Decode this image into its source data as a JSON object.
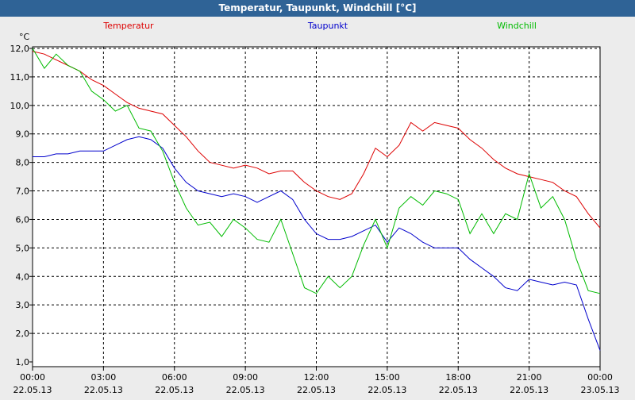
{
  "window": {
    "title": "Temperatur, Taupunkt, Windchill [°C]"
  },
  "chart_data": {
    "type": "line",
    "title": "Temperatur, Taupunkt, Windchill [°C]",
    "ylabel": "°C",
    "ylim": [
      1.0,
      12.0
    ],
    "y_ticks": [
      "12,0",
      "11,0",
      "10,0",
      "9,0",
      "8,0",
      "7,0",
      "6,0",
      "5,0",
      "4,0",
      "3,0",
      "2,0",
      "1,0"
    ],
    "x_ticks": [
      {
        "time": "00:00",
        "date": "22.05.13"
      },
      {
        "time": "03:00",
        "date": "22.05.13"
      },
      {
        "time": "06:00",
        "date": "22.05.13"
      },
      {
        "time": "09:00",
        "date": "22.05.13"
      },
      {
        "time": "12:00",
        "date": "22.05.13"
      },
      {
        "time": "15:00",
        "date": "22.05.13"
      },
      {
        "time": "18:00",
        "date": "22.05.13"
      },
      {
        "time": "21:00",
        "date": "22.05.13"
      },
      {
        "time": "00:00",
        "date": "23.05.13"
      }
    ],
    "x_unit": "hours since 22.05.13 00:00",
    "grid": true,
    "series": [
      {
        "name": "Temperatur",
        "color": "#dd0000",
        "x": [
          0,
          0.5,
          1,
          1.5,
          2,
          2.5,
          3,
          3.5,
          4,
          4.5,
          5,
          5.5,
          6,
          6.5,
          7,
          7.5,
          8,
          8.5,
          9,
          9.5,
          10,
          10.5,
          11,
          11.5,
          12,
          12.5,
          13,
          13.5,
          14,
          14.5,
          15,
          15.5,
          16,
          16.5,
          17,
          17.5,
          18,
          18.5,
          19,
          19.5,
          20,
          20.5,
          21,
          21.5,
          22,
          22.5,
          23,
          23.5,
          24
        ],
        "values": [
          11.9,
          11.8,
          11.6,
          11.4,
          11.2,
          10.9,
          10.7,
          10.4,
          10.1,
          9.9,
          9.8,
          9.7,
          9.3,
          8.9,
          8.4,
          8.0,
          7.9,
          7.8,
          7.9,
          7.8,
          7.6,
          7.7,
          7.7,
          7.3,
          7.0,
          6.8,
          6.7,
          6.9,
          7.6,
          8.5,
          8.2,
          8.6,
          9.4,
          9.1,
          9.4,
          9.3,
          9.2,
          8.8,
          8.5,
          8.1,
          7.8,
          7.6,
          7.5,
          7.4,
          7.3,
          7.0,
          6.8,
          6.2,
          5.7
        ]
      },
      {
        "name": "Taupunkt",
        "color": "#0000cc",
        "x": [
          0,
          0.5,
          1,
          1.5,
          2,
          2.5,
          3,
          3.5,
          4,
          4.5,
          5,
          5.5,
          6,
          6.5,
          7,
          7.5,
          8,
          8.5,
          9,
          9.5,
          10,
          10.5,
          11,
          11.5,
          12,
          12.5,
          13,
          13.5,
          14,
          14.5,
          15,
          15.5,
          16,
          16.5,
          17,
          17.5,
          18,
          18.5,
          19,
          19.5,
          20,
          20.5,
          21,
          21.5,
          22,
          22.5,
          23,
          23.5,
          24
        ],
        "values": [
          8.2,
          8.2,
          8.3,
          8.3,
          8.4,
          8.4,
          8.4,
          8.6,
          8.8,
          8.9,
          8.8,
          8.5,
          7.8,
          7.3,
          7.0,
          6.9,
          6.8,
          6.9,
          6.8,
          6.6,
          6.8,
          7.0,
          6.7,
          6.0,
          5.5,
          5.3,
          5.3,
          5.4,
          5.6,
          5.8,
          5.2,
          5.7,
          5.5,
          5.2,
          5.0,
          5.0,
          5.0,
          4.6,
          4.3,
          4.0,
          3.6,
          3.5,
          3.9,
          3.8,
          3.7,
          3.8,
          3.7,
          2.5,
          1.4
        ]
      },
      {
        "name": "Windchill",
        "color": "#00bb00",
        "x": [
          0,
          0.5,
          1,
          1.5,
          2,
          2.5,
          3,
          3.5,
          4,
          4.5,
          5,
          5.5,
          6,
          6.5,
          7,
          7.5,
          8,
          8.5,
          9,
          9.5,
          10,
          10.5,
          11,
          11.5,
          12,
          12.5,
          13,
          13.5,
          14,
          14.5,
          15,
          15.5,
          16,
          16.5,
          17,
          17.5,
          18,
          18.5,
          19,
          19.5,
          20,
          20.5,
          21,
          21.5,
          22,
          22.5,
          23,
          23.5,
          24
        ],
        "values": [
          12.0,
          11.3,
          11.8,
          11.4,
          11.2,
          10.5,
          10.2,
          9.8,
          10.0,
          9.2,
          9.1,
          8.4,
          7.3,
          6.4,
          5.8,
          5.9,
          5.4,
          6.0,
          5.7,
          5.3,
          5.2,
          6.0,
          4.8,
          3.6,
          3.4,
          4.0,
          3.6,
          4.0,
          5.1,
          6.0,
          5.0,
          6.4,
          6.8,
          6.5,
          7.0,
          6.9,
          6.7,
          5.5,
          6.2,
          5.5,
          6.2,
          6.0,
          7.6,
          6.4,
          6.8,
          6.0,
          4.6,
          3.5,
          3.4
        ]
      }
    ]
  }
}
